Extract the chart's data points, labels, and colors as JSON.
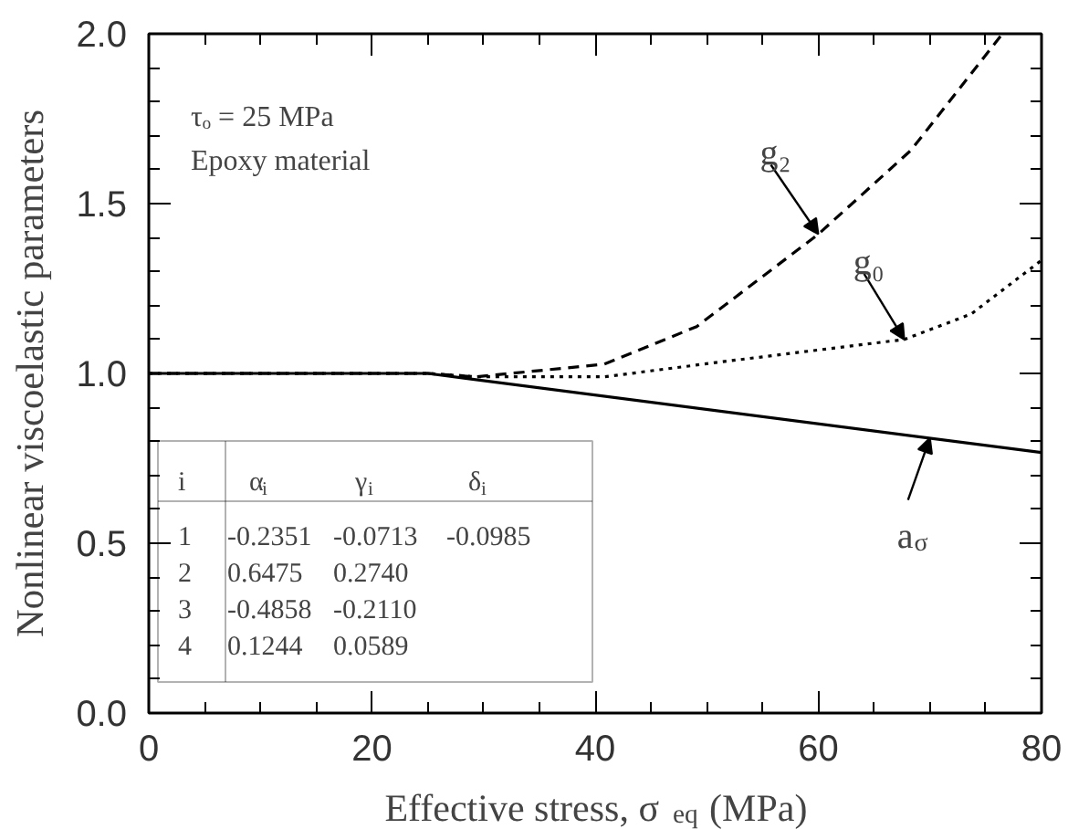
{
  "chart_data": {
    "type": "line",
    "xlabel": "Effective stress, σ$_{eq}$ (MPa)",
    "ylabel": "Nonlinear viscoelastic parameters",
    "xlim": [
      0,
      80
    ],
    "ylim": [
      0.0,
      2.0
    ],
    "xticks": [
      0,
      20,
      40,
      60,
      80
    ],
    "yticks": [
      {
        "value": 0,
        "label": "0.0"
      },
      0.5,
      {
        "value": 1,
        "label": "1.0"
      },
      1.5,
      {
        "value": 2,
        "label": "2.0"
      }
    ],
    "grid": false,
    "marker": "none",
    "series": [
      {
        "color": "#000000",
        "line_style": "dashed",
        "x": [
          0,
          25,
          29.3,
          40.8,
          49.1,
          60.0,
          68.3,
          76.5
        ],
        "values": [
          1.0,
          1.0,
          0.99,
          1.027,
          1.138,
          1.41,
          1.657,
          2.0
        ]
      },
      {
        "color": "#000000",
        "line_style": "dotted",
        "x": [
          0,
          25,
          29.3,
          40.8,
          51.8,
          67.7,
          73.7,
          80
        ],
        "values": [
          1.0,
          1.0,
          0.99,
          0.99,
          1.036,
          1.1,
          1.175,
          1.333
        ]
      },
      {
        "color": "#000000",
        "line_style": "solid",
        "x": [
          0,
          25,
          80
        ],
        "values": [
          1.0,
          1.0,
          0.767
        ]
      }
    ],
    "annotations": [
      {
        "text": "g₂",
        "x": 60.0,
        "y": 1.41
      },
      {
        "text": "g₀",
        "x": 67.7,
        "y": 1.1
      },
      {
        "text": "a$_{σ}$",
        "x": 70.0,
        "y": 0.81
      },
      "τₒ = 25 MPa",
      "Epoxy material",
      "i",
      "α$_{i}$",
      "γ$_{i}$",
      "δ$_{i}$",
      "1",
      "-0.2351",
      "-0.0713",
      "-0.0985",
      "2",
      "0.6475",
      "0.2740",
      "3",
      "-0.4858",
      "-0.2110",
      "4",
      "0.1244",
      "0.0589"
    ]
  }
}
